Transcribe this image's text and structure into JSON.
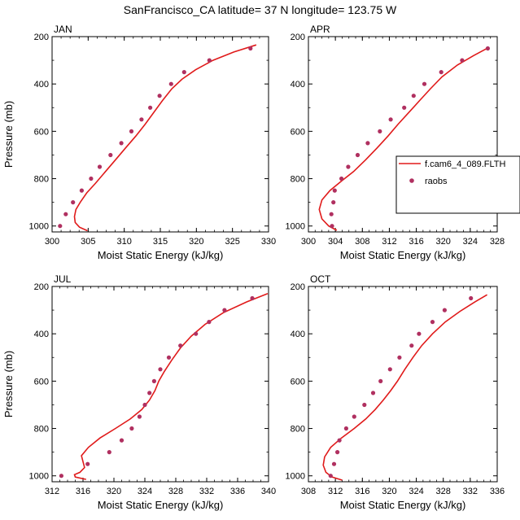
{
  "title": "SanFrancisco_CA  latitude= 37 N longitude= 123.75 W",
  "colors": {
    "model": "#e01a1a",
    "obs": "#b03060"
  },
  "legend": {
    "model": "f.cam6_4_089.FLTH",
    "obs": "raobs"
  },
  "chart_data": [
    {
      "type": "line",
      "panel": "JAN",
      "xlabel": "Moist Static Energy (kJ/kg)",
      "ylabel": "Pressure (mb)",
      "xlim": [
        300,
        330
      ],
      "xticks": [
        300,
        305,
        310,
        315,
        320,
        325,
        330
      ],
      "ylim": [
        1025,
        200
      ],
      "yticks": [
        200,
        400,
        600,
        800,
        1000
      ],
      "series": [
        {
          "kind": "model",
          "points": [
            [
              304.9,
              1020
            ],
            [
              303.8,
              1005
            ],
            [
              303.2,
              985
            ],
            [
              303.1,
              960
            ],
            [
              303.3,
              930
            ],
            [
              303.9,
              900
            ],
            [
              304.8,
              860
            ],
            [
              306,
              820
            ],
            [
              307.4,
              770
            ],
            [
              308.8,
              720
            ],
            [
              310.2,
              670
            ],
            [
              311.6,
              620
            ],
            [
              312.9,
              570
            ],
            [
              314.1,
              520
            ],
            [
              315.3,
              470
            ],
            [
              316.6,
              420
            ],
            [
              318,
              380
            ],
            [
              319.9,
              340
            ],
            [
              322.3,
              300
            ],
            [
              325.2,
              265
            ],
            [
              328.3,
              235
            ]
          ]
        },
        {
          "kind": "obs",
          "points": [
            [
              301.1,
              1000
            ],
            [
              301.9,
              950
            ],
            [
              302.9,
              900
            ],
            [
              304.1,
              850
            ],
            [
              305.4,
              800
            ],
            [
              306.6,
              750
            ],
            [
              308.1,
              700
            ],
            [
              309.6,
              650
            ],
            [
              311,
              600
            ],
            [
              312.4,
              550
            ],
            [
              313.6,
              500
            ],
            [
              314.9,
              450
            ],
            [
              316.5,
              400
            ],
            [
              318.3,
              350
            ],
            [
              321.8,
              300
            ],
            [
              327.5,
              250
            ]
          ]
        }
      ]
    },
    {
      "type": "line",
      "panel": "APR",
      "xlabel": "Moist Static Energy (kJ/kg)",
      "ylabel": "",
      "xlim": [
        300,
        328
      ],
      "xticks": [
        300,
        304,
        308,
        312,
        316,
        320,
        324,
        328
      ],
      "ylim": [
        1025,
        200
      ],
      "yticks": [
        200,
        400,
        600,
        800,
        1000
      ],
      "series": [
        {
          "kind": "model",
          "points": [
            [
              304.2,
              1018
            ],
            [
              303,
              1000
            ],
            [
              302,
              970
            ],
            [
              301.6,
              930
            ],
            [
              302,
              890
            ],
            [
              303.2,
              850
            ],
            [
              304.9,
              810
            ],
            [
              306.7,
              770
            ],
            [
              308.5,
              720
            ],
            [
              310.2,
              670
            ],
            [
              311.8,
              620
            ],
            [
              313.3,
              570
            ],
            [
              314.9,
              520
            ],
            [
              316.5,
              470
            ],
            [
              318.1,
              420
            ],
            [
              319.8,
              370
            ],
            [
              322.1,
              320
            ],
            [
              324.5,
              280
            ],
            [
              326.8,
              245
            ]
          ]
        },
        {
          "kind": "obs",
          "points": [
            [
              303.5,
              1000
            ],
            [
              303.4,
              950
            ],
            [
              303.7,
              900
            ],
            [
              303.9,
              850
            ],
            [
              304.9,
              800
            ],
            [
              305.9,
              750
            ],
            [
              307.3,
              700
            ],
            [
              308.8,
              650
            ],
            [
              310.6,
              600
            ],
            [
              312.2,
              550
            ],
            [
              314.2,
              500
            ],
            [
              315.6,
              450
            ],
            [
              317.2,
              400
            ],
            [
              319.7,
              350
            ],
            [
              322.8,
              300
            ],
            [
              326.6,
              250
            ]
          ]
        }
      ]
    },
    {
      "type": "line",
      "panel": "JUL",
      "xlabel": "Moist Static Energy (kJ/kg)",
      "ylabel": "Pressure (mb)",
      "xlim": [
        312,
        340
      ],
      "xticks": [
        312,
        316,
        320,
        324,
        328,
        332,
        336,
        340
      ],
      "ylim": [
        1025,
        200
      ],
      "yticks": [
        200,
        400,
        600,
        800,
        1000
      ],
      "series": [
        {
          "kind": "model",
          "points": [
            [
              316.4,
              1015
            ],
            [
              315,
              1005
            ],
            [
              314.9,
              995
            ],
            [
              315.6,
              985
            ],
            [
              316.2,
              965
            ],
            [
              316,
              940
            ],
            [
              315.8,
              915
            ],
            [
              316.7,
              880
            ],
            [
              318.2,
              840
            ],
            [
              320.2,
              800
            ],
            [
              322.1,
              760
            ],
            [
              323.6,
              720
            ],
            [
              324.6,
              680
            ],
            [
              325.3,
              640
            ],
            [
              325.8,
              600
            ],
            [
              326.5,
              560
            ],
            [
              327.5,
              510
            ],
            [
              328.6,
              460
            ],
            [
              330,
              410
            ],
            [
              331.8,
              360
            ],
            [
              334.2,
              310
            ],
            [
              337.2,
              265
            ],
            [
              339.9,
              230
            ]
          ]
        },
        {
          "kind": "obs",
          "points": [
            [
              313.2,
              1000
            ],
            [
              316.6,
              950
            ],
            [
              319.4,
              900
            ],
            [
              321,
              850
            ],
            [
              322.3,
              800
            ],
            [
              323.3,
              750
            ],
            [
              324,
              700
            ],
            [
              324.6,
              650
            ],
            [
              325.2,
              600
            ],
            [
              326,
              550
            ],
            [
              327.1,
              500
            ],
            [
              328.6,
              450
            ],
            [
              330.6,
              400
            ],
            [
              332.3,
              350
            ],
            [
              334.3,
              300
            ],
            [
              337.9,
              250
            ]
          ]
        }
      ]
    },
    {
      "type": "line",
      "panel": "OCT",
      "xlabel": "Moist Static Energy (kJ/kg)",
      "ylabel": "",
      "xlim": [
        308,
        336
      ],
      "xticks": [
        308,
        312,
        316,
        320,
        324,
        328,
        332,
        336
      ],
      "ylim": [
        1025,
        200
      ],
      "yticks": [
        200,
        400,
        600,
        800,
        1000
      ],
      "series": [
        {
          "kind": "model",
          "points": [
            [
              313,
              1018
            ],
            [
              311.5,
              1005
            ],
            [
              310.6,
              985
            ],
            [
              310.2,
              955
            ],
            [
              310.4,
              920
            ],
            [
              311.3,
              880
            ],
            [
              312.9,
              840
            ],
            [
              314.8,
              800
            ],
            [
              316.5,
              760
            ],
            [
              317.9,
              720
            ],
            [
              319.1,
              680
            ],
            [
              320.2,
              640
            ],
            [
              321.2,
              600
            ],
            [
              322.3,
              550
            ],
            [
              323.5,
              500
            ],
            [
              324.8,
              450
            ],
            [
              326.4,
              400
            ],
            [
              328.3,
              350
            ],
            [
              330.5,
              305
            ],
            [
              332.7,
              265
            ],
            [
              334.5,
              235
            ]
          ]
        },
        {
          "kind": "obs",
          "points": [
            [
              311.3,
              1000
            ],
            [
              311.8,
              950
            ],
            [
              312.3,
              900
            ],
            [
              312.6,
              850
            ],
            [
              313.6,
              800
            ],
            [
              314.8,
              750
            ],
            [
              316.3,
              700
            ],
            [
              317.6,
              650
            ],
            [
              318.7,
              600
            ],
            [
              320.1,
              550
            ],
            [
              321.5,
              500
            ],
            [
              323.3,
              450
            ],
            [
              324.4,
              400
            ],
            [
              326.4,
              350
            ],
            [
              328.2,
              300
            ],
            [
              332.1,
              250
            ]
          ]
        }
      ]
    }
  ]
}
